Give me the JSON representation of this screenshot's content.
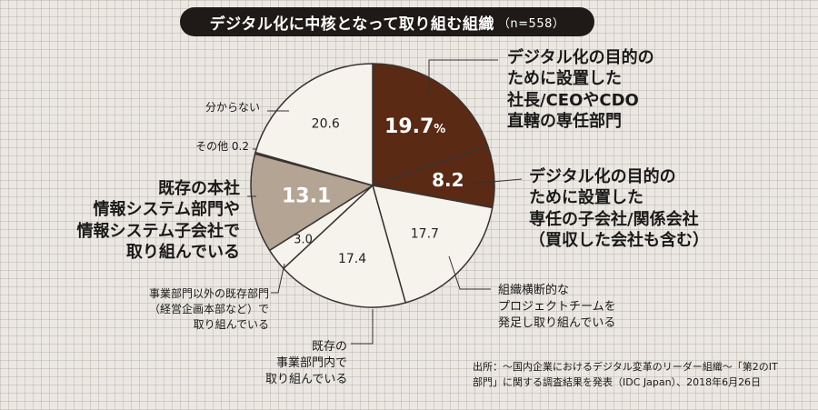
{
  "title": "デジタル化に中核となって取り組む組織",
  "sample": "（n=558）",
  "source": {
    "line1": "出所：～国内企業におけるデジタル変革のリーダー組織～「第2のIT",
    "line2": "部門」に関する調査結果を発表（IDC Japan）、2018年6月26日"
  },
  "colors": {
    "dark": "#5a2a14",
    "light": "#f6f2ec",
    "tan": "#b3a494",
    "border": "#3a3430"
  },
  "chart_data": {
    "type": "pie",
    "title": "デジタル化に中核となって取り組む組織（n=558）",
    "unit": "%",
    "slices": [
      {
        "label_lines": [
          "デジタル化の目的の",
          "ために設置した",
          "社長/CEOやCDO",
          "直轄の専任部門"
        ],
        "value": 19.7,
        "value_text": "19.7",
        "unit_text": "%",
        "color": "#5a2a14"
      },
      {
        "label_lines": [
          "デジタル化の目的の",
          "ために設置した",
          "専任の子会社/関係会社",
          "（買収した会社も含む）"
        ],
        "value": 8.2,
        "value_text": "8.2",
        "unit_text": "",
        "color": "#5a2a14"
      },
      {
        "label_lines": [
          "組織横断的な",
          "プロジェクトチームを",
          "発足し取り組んでいる"
        ],
        "value": 17.7,
        "value_text": "17.7",
        "unit_text": "",
        "color": "#f6f2ec"
      },
      {
        "label_lines": [
          "既存の",
          "事業部門内で",
          "取り組んでいる"
        ],
        "value": 17.4,
        "value_text": "17.4",
        "unit_text": "",
        "color": "#f6f2ec"
      },
      {
        "label_lines": [
          "事業部門以外の既存部門",
          "（経営企画本部など）で",
          "取り組んでいる"
        ],
        "value": 3.0,
        "value_text": "3.0",
        "unit_text": "",
        "color": "#f6f2ec"
      },
      {
        "label_lines": [
          "既存の本社",
          "情報システム部門や",
          "情報システム子会社で",
          "取り組んでいる"
        ],
        "value": 13.1,
        "value_text": "13.1",
        "unit_text": "",
        "color": "#b3a494"
      },
      {
        "label_lines": [
          "その他"
        ],
        "value": 0.2,
        "value_text": "0.2",
        "unit_text": "",
        "color": "#f6f2ec"
      },
      {
        "label_lines": [
          "分からない"
        ],
        "value": 20.6,
        "value_text": "20.6",
        "unit_text": "",
        "color": "#f6f2ec"
      }
    ]
  }
}
